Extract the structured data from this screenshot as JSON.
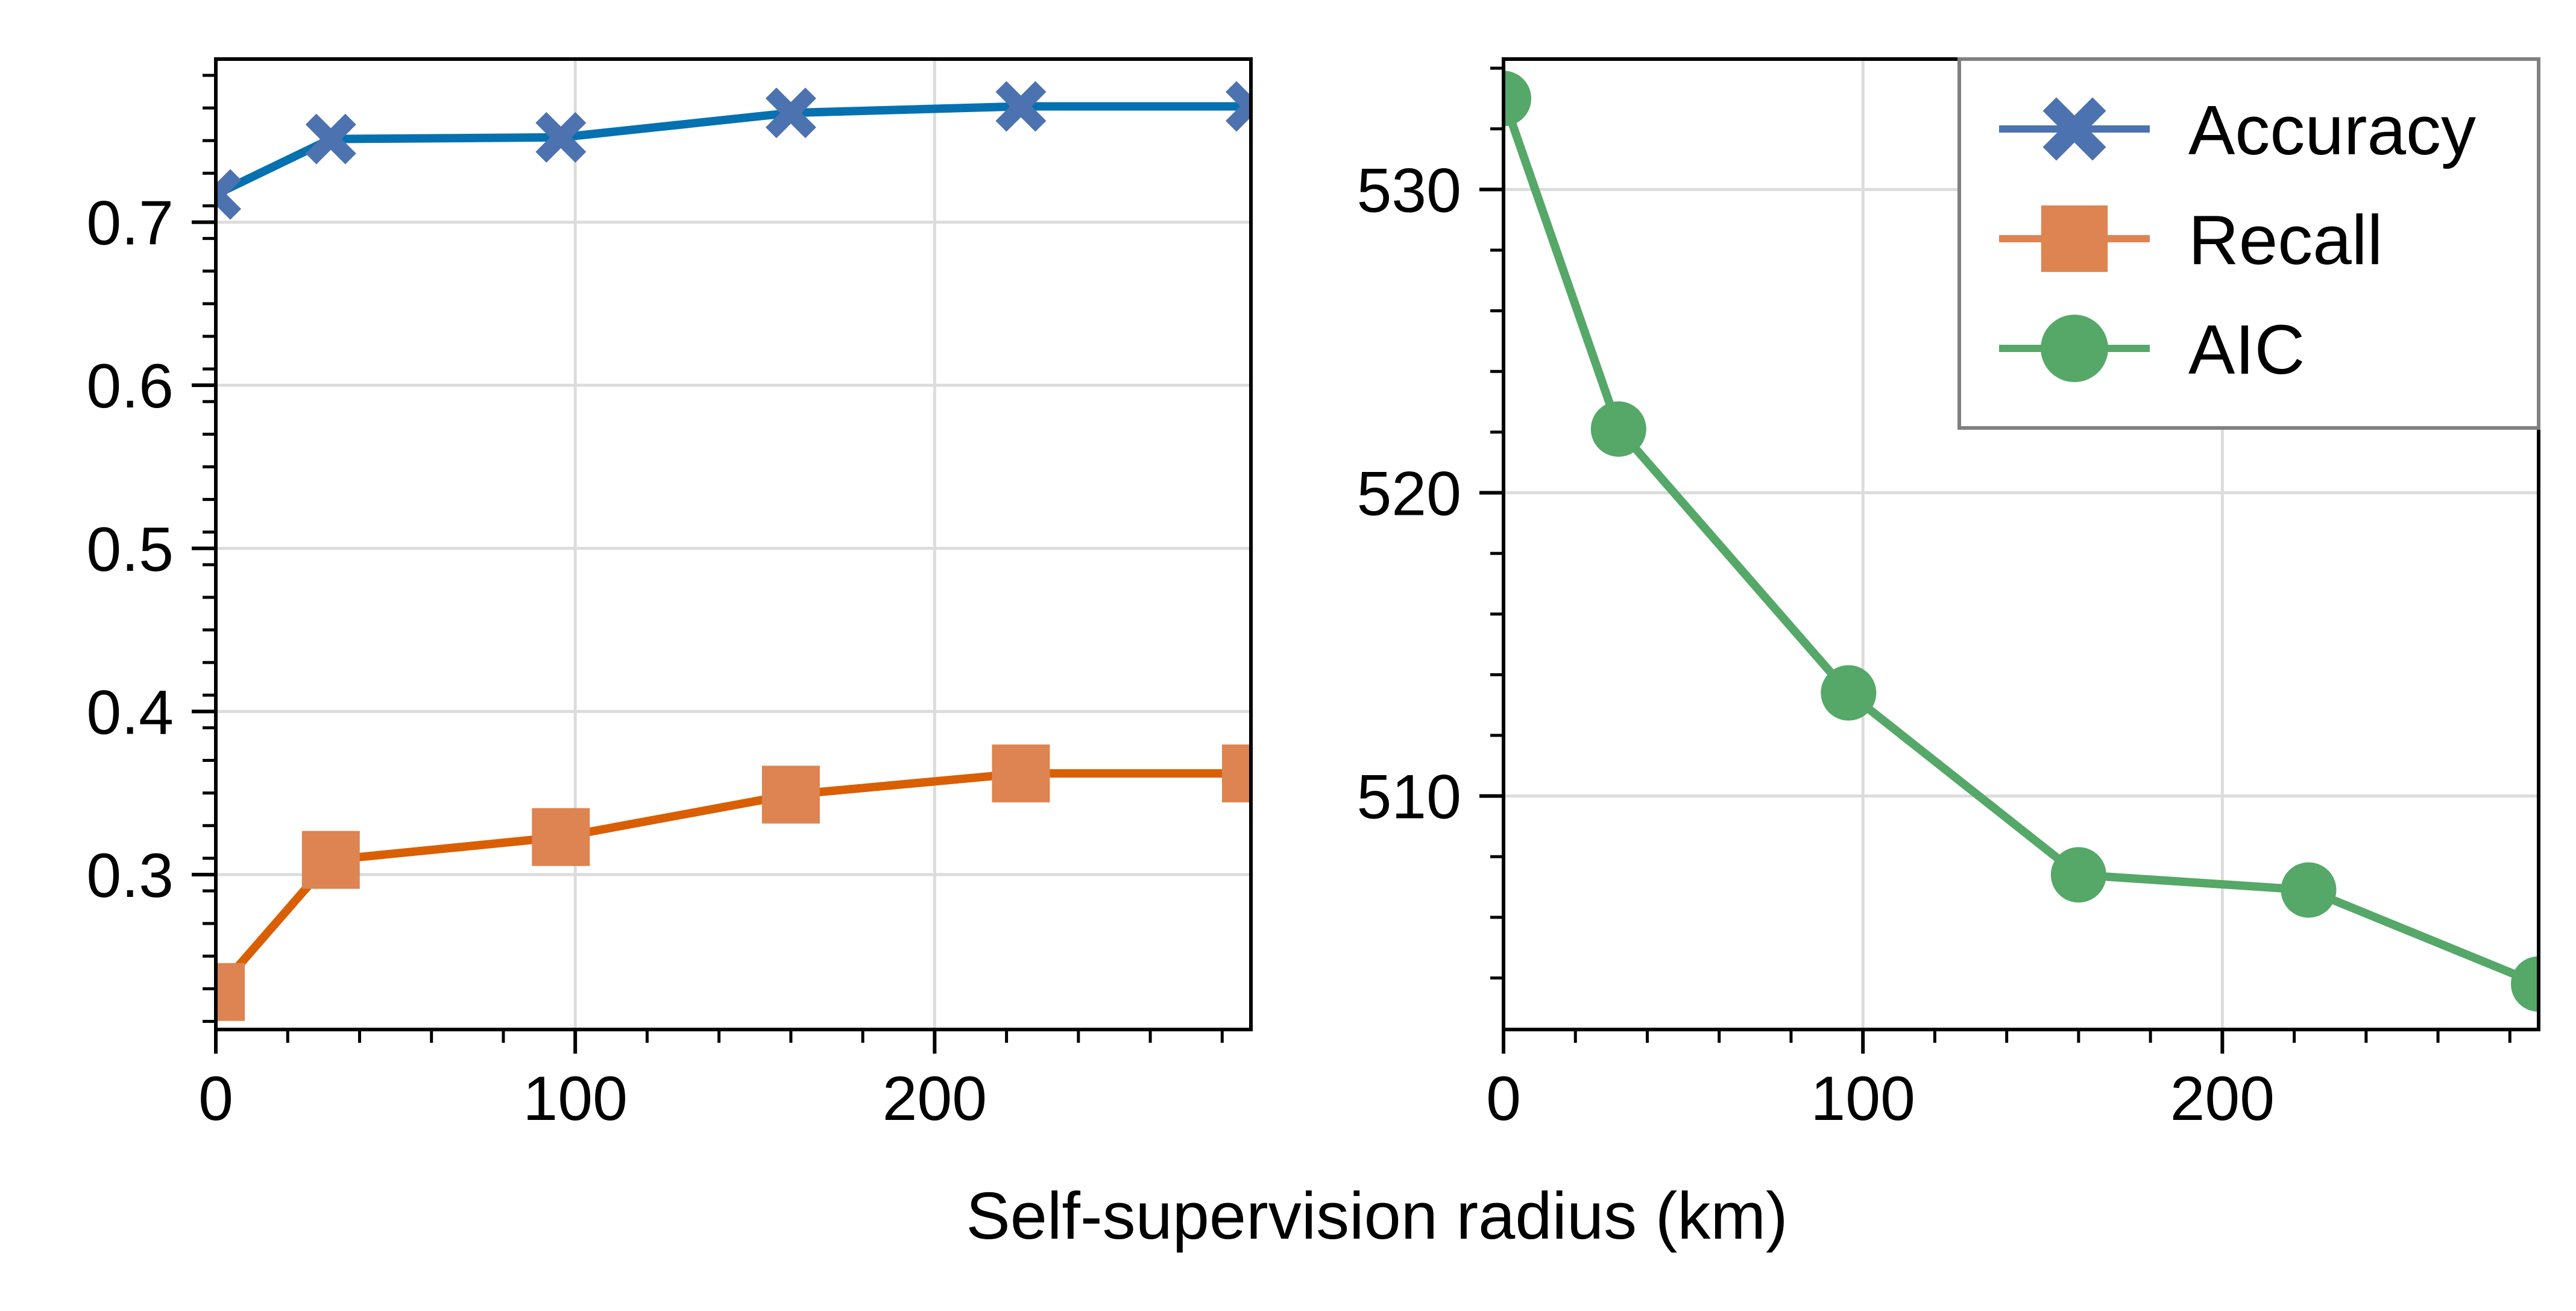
{
  "figure": {
    "xlabel": "Self-supervision radius (km)"
  },
  "chart_data": [
    {
      "type": "line",
      "title": "",
      "xlabel": "",
      "ylabel": "",
      "x": [
        0,
        32,
        96,
        160,
        224,
        288
      ],
      "xlim": [
        0,
        288
      ],
      "ylim": [
        0.205,
        0.8
      ],
      "xticks": [
        0,
        100,
        200
      ],
      "xtick_labels": [
        "0",
        "100",
        "200"
      ],
      "yticks": [
        0.3,
        0.4,
        0.5,
        0.6,
        0.7
      ],
      "ytick_labels": [
        "0.3",
        "0.4",
        "0.5",
        "0.6",
        "0.7"
      ],
      "grid": true,
      "series": [
        {
          "name": "Accuracy",
          "marker": "X",
          "line_color": "#0571b0",
          "marker_color": "#4c72b0",
          "values": [
            0.717,
            0.751,
            0.752,
            0.767,
            0.771,
            0.771
          ]
        },
        {
          "name": "Recall",
          "marker": "square",
          "line_color": "#d95f02",
          "marker_color": "#dd8452",
          "values": [
            0.228,
            0.309,
            0.323,
            0.349,
            0.362,
            0.362
          ]
        }
      ]
    },
    {
      "type": "line",
      "title": "",
      "xlabel": "",
      "ylabel": "",
      "x": [
        0,
        32,
        96,
        160,
        224,
        288
      ],
      "xlim": [
        0,
        288
      ],
      "ylim": [
        502.3,
        534.3
      ],
      "xticks": [
        0,
        100,
        200
      ],
      "xtick_labels": [
        "0",
        "100",
        "200"
      ],
      "yticks": [
        510,
        520,
        530
      ],
      "ytick_labels": [
        "510",
        "520",
        "530"
      ],
      "grid": true,
      "legend_position": "top-right",
      "series": [
        {
          "name": "AIC",
          "marker": "circle",
          "line_color": "#55a868",
          "marker_color": "#55a868",
          "values": [
            533.0,
            522.1,
            513.4,
            507.4,
            506.9,
            503.8
          ]
        }
      ]
    }
  ],
  "legend": {
    "items": [
      {
        "label": "Accuracy",
        "marker": "X",
        "color": "#4c72b0"
      },
      {
        "label": "Recall",
        "marker": "square",
        "color": "#dd8452"
      },
      {
        "label": "AIC",
        "marker": "circle",
        "color": "#55a868"
      }
    ]
  }
}
